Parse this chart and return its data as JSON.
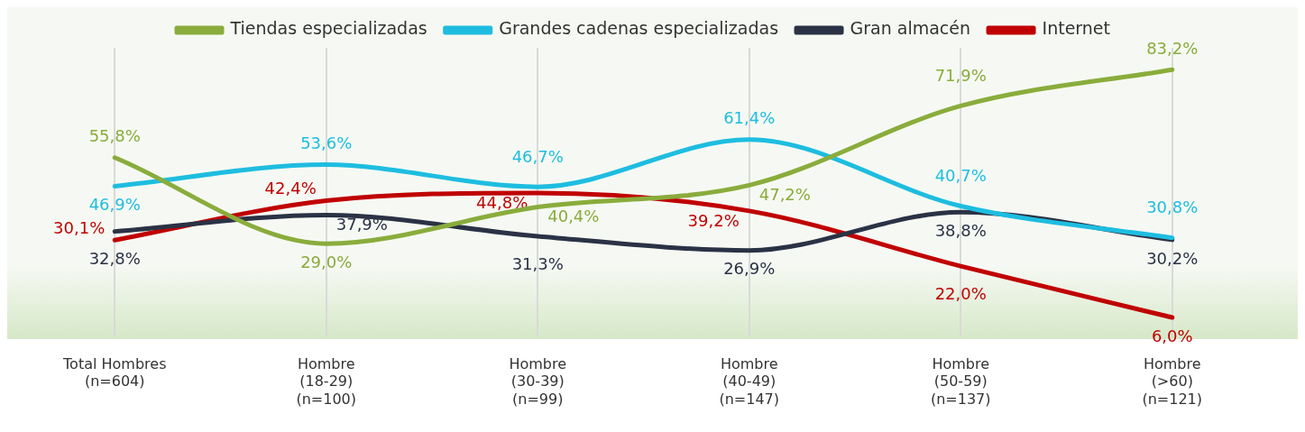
{
  "chart_data": {
    "type": "line",
    "categories": [
      "Total Hombres\n(n=604)",
      "Hombre\n(18-29)\n(n=100)",
      "Hombre\n(30-39)\n(n=99)",
      "Hombre\n(40-49)\n(n=147)",
      "Hombre\n(50-59)\n(n=137)",
      "Hombre\n(>60)\n(n=121)"
    ],
    "series": [
      {
        "name": "Tiendas especializadas",
        "color": "#8aac3c",
        "values": [
          55.8,
          29.0,
          40.4,
          47.2,
          71.9,
          83.2
        ],
        "value_labels": [
          "55,8%",
          "29,0%",
          "40,4%",
          "47,2%",
          "71,9%",
          "83,2%"
        ]
      },
      {
        "name": "Grandes cadenas especializadas",
        "color": "#1ebde0",
        "values": [
          46.9,
          53.6,
          46.7,
          61.4,
          40.7,
          30.8
        ],
        "value_labels": [
          "46,9%",
          "53,6%",
          "46,7%",
          "61,4%",
          "40,7%",
          "30,8%"
        ]
      },
      {
        "name": "Gran almacén",
        "color": "#2b3245",
        "values": [
          32.8,
          37.9,
          31.3,
          26.9,
          38.8,
          30.2
        ],
        "value_labels": [
          "32,8%",
          "37,9%",
          "31,3%",
          "26,9%",
          "38,8%",
          "30,2%"
        ]
      },
      {
        "name": "Internet",
        "color": "#c00000",
        "values": [
          30.1,
          42.4,
          44.8,
          39.2,
          22.0,
          6.0
        ],
        "value_labels": [
          "30,1%",
          "42,4%",
          "44,8%",
          "39,2%",
          "22,0%",
          "6,0%"
        ]
      }
    ],
    "legend": "top",
    "grid": "x",
    "marker": "none",
    "line_style": "solid"
  }
}
